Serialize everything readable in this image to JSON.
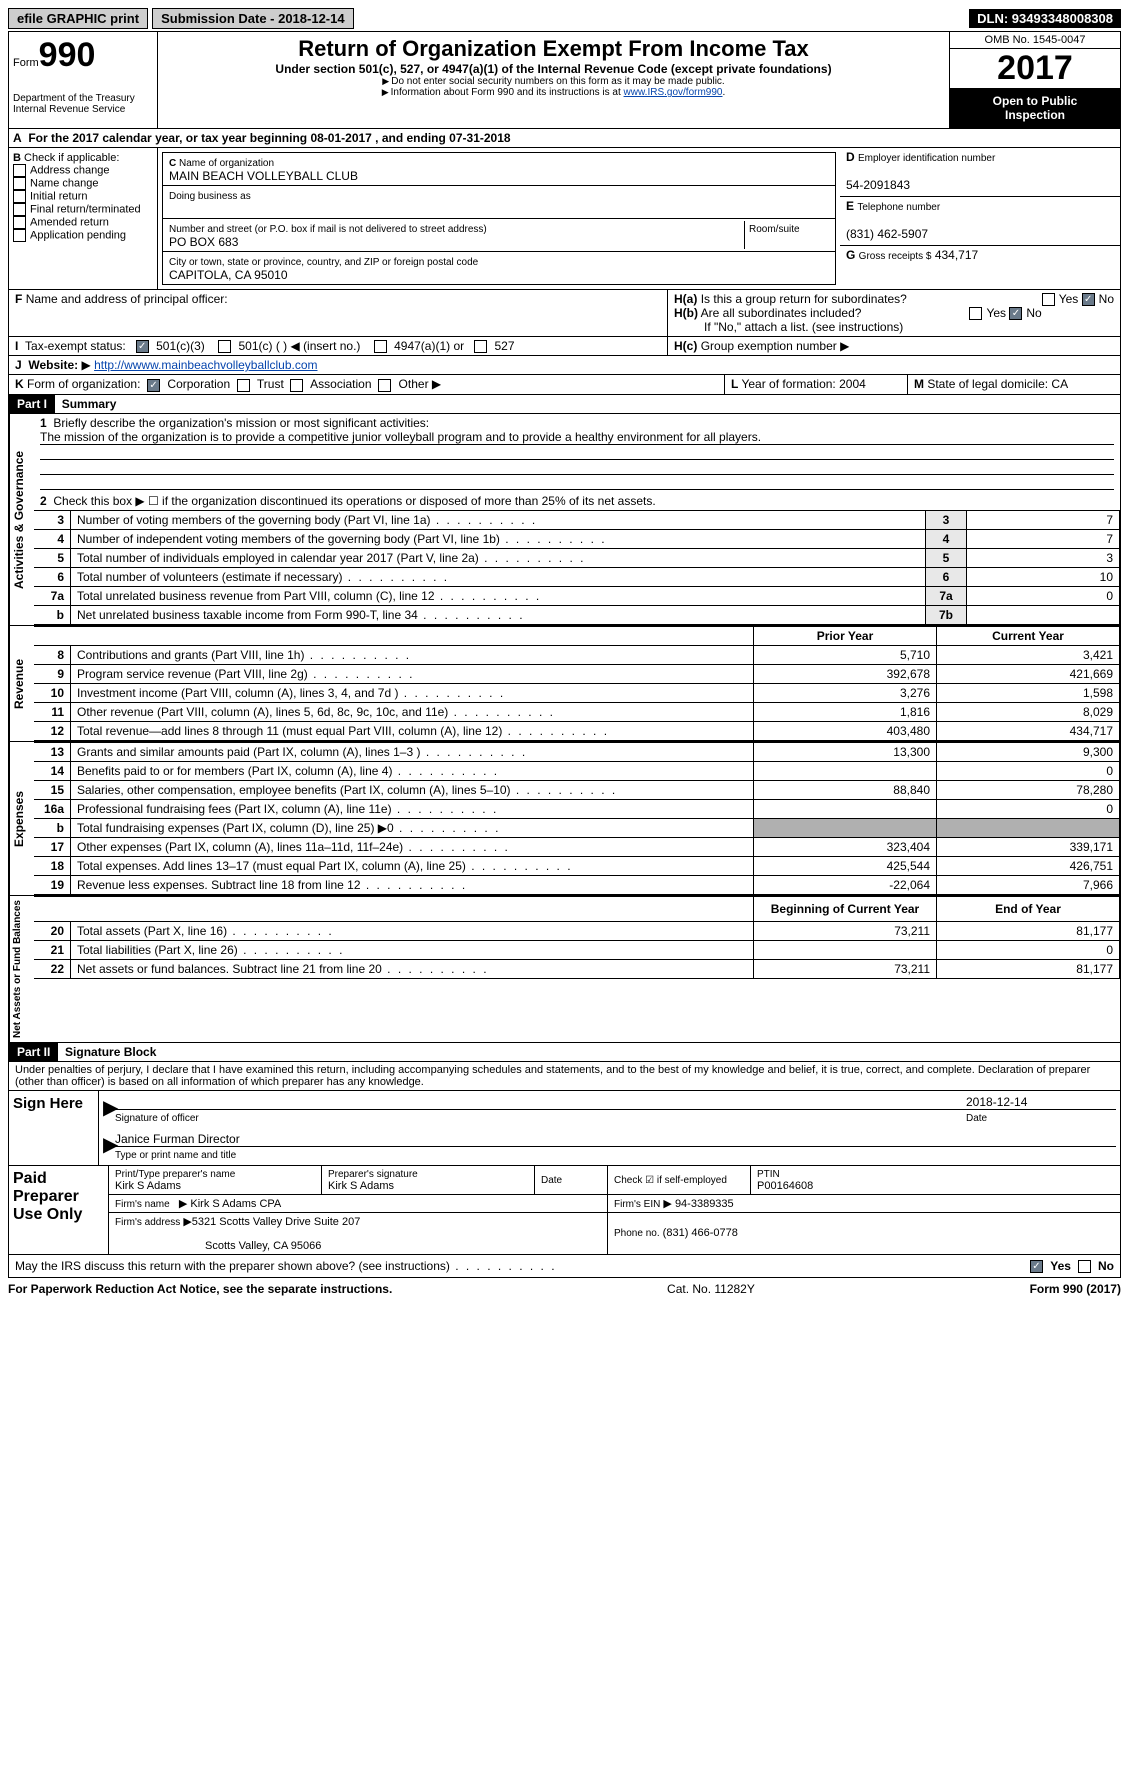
{
  "topbar": {
    "efile": "efile GRAPHIC print",
    "submission": "Submission Date - 2018-12-14",
    "dln": "DLN: 93493348008308"
  },
  "header": {
    "form_label": "Form",
    "form_number": "990",
    "dept1": "Department of the Treasury",
    "dept2": "Internal Revenue Service",
    "title": "Return of Organization Exempt From Income Tax",
    "sub": "Under section 501(c), 527, or 4947(a)(1) of the Internal Revenue Code (except private foundations)",
    "note1": "Do not enter social security numbers on this form as it may be made public.",
    "note2": "Information about Form 990 and its instructions is at ",
    "note2_link": "www.IRS.gov/form990",
    "omb": "OMB No. 1545-0047",
    "year": "2017",
    "open1": "Open to Public",
    "open2": "Inspection"
  },
  "A": {
    "text": "For the 2017 calendar year, or tax year beginning 08-01-2017   , and ending 07-31-2018"
  },
  "B": {
    "title": "Check if applicable:",
    "items": [
      "Address change",
      "Name change",
      "Initial return",
      "Final return/terminated",
      "Amended return",
      "Application pending"
    ]
  },
  "C": {
    "name_lbl": "Name of organization",
    "name": "MAIN BEACH VOLLEYBALL CLUB",
    "dba_lbl": "Doing business as",
    "dba": "",
    "street_lbl": "Number and street (or P.O. box if mail is not delivered to street address)",
    "room_lbl": "Room/suite",
    "street": "PO BOX 683",
    "city_lbl": "City or town, state or province, country, and ZIP or foreign postal code",
    "city": "CAPITOLA, CA  95010"
  },
  "D": {
    "lbl": "Employer identification number",
    "val": "54-2091843"
  },
  "E": {
    "lbl": "Telephone number",
    "val": "(831) 462-5907"
  },
  "G": {
    "lbl": "Gross receipts $",
    "val": "434,717"
  },
  "F": {
    "lbl": "Name and address of principal officer:"
  },
  "H": {
    "a": "Is this a group return for subordinates?",
    "b": "Are all subordinates included?",
    "note": "If \"No,\" attach a list. (see instructions)",
    "c": "Group exemption number",
    "yes": "Yes",
    "no": "No"
  },
  "I": {
    "lbl": "Tax-exempt status:",
    "o1": "501(c)(3)",
    "o2": "501(c) (  )",
    "insert": "(insert no.)",
    "o3": "4947(a)(1) or",
    "o4": "527"
  },
  "J": {
    "lbl": "Website:",
    "val": "http://wwww.mainbeachvolleyballclub.com"
  },
  "K": {
    "lbl": "Form of organization:",
    "o1": "Corporation",
    "o2": "Trust",
    "o3": "Association",
    "o4": "Other"
  },
  "L": {
    "lbl": "Year of formation:",
    "val": "2004"
  },
  "M": {
    "lbl": "State of legal domicile:",
    "val": "CA"
  },
  "part1": {
    "hdr": "Part I",
    "title": "Summary"
  },
  "summary": {
    "vert1": "Activities & Governance",
    "l1": "Briefly describe the organization's mission or most significant activities:",
    "mission": "The mission of the organization is to provide a competitive junior volleyball program and to provide a healthy environment for all players.",
    "l2": "Check this box ▶ ☐  if the organization discontinued its operations or disposed of more than 25% of its net assets.",
    "rows1": [
      {
        "n": "3",
        "t": "Number of voting members of the governing body (Part VI, line 1a)",
        "v": "7"
      },
      {
        "n": "4",
        "t": "Number of independent voting members of the governing body (Part VI, line 1b)",
        "v": "7"
      },
      {
        "n": "5",
        "t": "Total number of individuals employed in calendar year 2017 (Part V, line 2a)",
        "v": "3"
      },
      {
        "n": "6",
        "t": "Total number of volunteers (estimate if necessary)",
        "v": "10"
      },
      {
        "n": "7a",
        "t": "Total unrelated business revenue from Part VIII, column (C), line 12",
        "v": "0"
      },
      {
        "n": "b",
        "t": "Net unrelated business taxable income from Form 990-T, line 34",
        "ln": "7b",
        "v": ""
      }
    ],
    "hdr_prior": "Prior Year",
    "hdr_curr": "Current Year",
    "vert2": "Revenue",
    "rev": [
      {
        "n": "8",
        "t": "Contributions and grants (Part VIII, line 1h)",
        "p": "5,710",
        "c": "3,421"
      },
      {
        "n": "9",
        "t": "Program service revenue (Part VIII, line 2g)",
        "p": "392,678",
        "c": "421,669"
      },
      {
        "n": "10",
        "t": "Investment income (Part VIII, column (A), lines 3, 4, and 7d )",
        "p": "3,276",
        "c": "1,598"
      },
      {
        "n": "11",
        "t": "Other revenue (Part VIII, column (A), lines 5, 6d, 8c, 9c, 10c, and 11e)",
        "p": "1,816",
        "c": "8,029"
      },
      {
        "n": "12",
        "t": "Total revenue—add lines 8 through 11 (must equal Part VIII, column (A), line 12)",
        "p": "403,480",
        "c": "434,717"
      }
    ],
    "vert3": "Expenses",
    "exp": [
      {
        "n": "13",
        "t": "Grants and similar amounts paid (Part IX, column (A), lines 1–3 )",
        "p": "13,300",
        "c": "9,300"
      },
      {
        "n": "14",
        "t": "Benefits paid to or for members (Part IX, column (A), line 4)",
        "p": "",
        "c": "0"
      },
      {
        "n": "15",
        "t": "Salaries, other compensation, employee benefits (Part IX, column (A), lines 5–10)",
        "p": "88,840",
        "c": "78,280"
      },
      {
        "n": "16a",
        "t": "Professional fundraising fees (Part IX, column (A), line 11e)",
        "p": "",
        "c": "0"
      },
      {
        "n": "b",
        "t": "Total fundraising expenses (Part IX, column (D), line 25) ▶0",
        "p": "shade",
        "c": "shade"
      },
      {
        "n": "17",
        "t": "Other expenses (Part IX, column (A), lines 11a–11d, 11f–24e)",
        "p": "323,404",
        "c": "339,171"
      },
      {
        "n": "18",
        "t": "Total expenses. Add lines 13–17 (must equal Part IX, column (A), line 25)",
        "p": "425,544",
        "c": "426,751"
      },
      {
        "n": "19",
        "t": "Revenue less expenses. Subtract line 18 from line 12",
        "p": "-22,064",
        "c": "7,966"
      }
    ],
    "hdr_beg": "Beginning of Current Year",
    "hdr_end": "End of Year",
    "vert4": "Net Assets or Fund Balances",
    "net": [
      {
        "n": "20",
        "t": "Total assets (Part X, line 16)",
        "p": "73,211",
        "c": "81,177"
      },
      {
        "n": "21",
        "t": "Total liabilities (Part X, line 26)",
        "p": "",
        "c": "0"
      },
      {
        "n": "22",
        "t": "Net assets or fund balances. Subtract line 21 from line 20",
        "p": "73,211",
        "c": "81,177"
      }
    ]
  },
  "part2": {
    "hdr": "Part II",
    "title": "Signature Block",
    "decl": "Under penalties of perjury, I declare that I have examined this return, including accompanying schedules and statements, and to the best of my knowledge and belief, it is true, correct, and complete. Declaration of preparer (other than officer) is based on all information of which preparer has any knowledge."
  },
  "sign": {
    "lbl": "Sign Here",
    "sig_lbl": "Signature of officer",
    "date": "2018-12-14",
    "date_lbl": "Date",
    "name": "Janice Furman  Director",
    "name_lbl": "Type or print name and title"
  },
  "paid": {
    "lbl": "Paid Preparer Use Only",
    "r1": {
      "c1l": "Print/Type preparer's name",
      "c1": "Kirk S Adams",
      "c2l": "Preparer's signature",
      "c2": "Kirk S Adams",
      "c3l": "Date",
      "c3": "",
      "c4": "Check ☑ if self-employed",
      "c5l": "PTIN",
      "c5": "P00164608"
    },
    "r2": {
      "c1l": "Firm's name",
      "c1": "Kirk S Adams CPA",
      "c2l": "Firm's EIN",
      "c2": "94-3389335"
    },
    "r3": {
      "c1l": "Firm's address",
      "c1": "5321 Scotts Valley Drive Suite 207",
      "c2l": "Phone no.",
      "c2": "(831) 466-0778"
    },
    "r4": "Scotts Valley, CA  95066"
  },
  "discuss": {
    "t": "May the IRS discuss this return with the preparer shown above? (see instructions)",
    "yes": "Yes",
    "no": "No"
  },
  "footer": {
    "l": "For Paperwork Reduction Act Notice, see the separate instructions.",
    "m": "Cat. No. 11282Y",
    "r": "Form 990 (2017)"
  }
}
